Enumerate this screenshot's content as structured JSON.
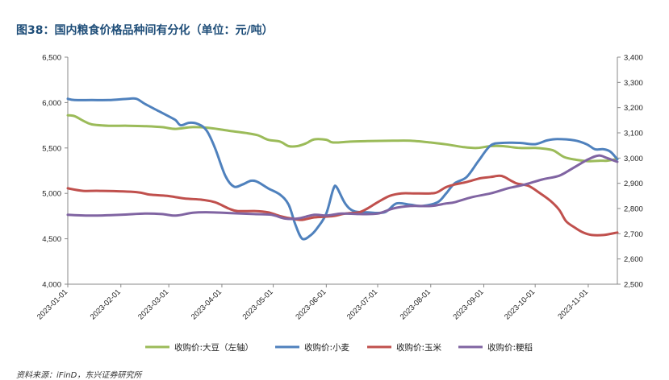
{
  "title": "图38：国内粮食价格品种间有分化（单位：元/吨）",
  "source": "资料来源：iFinD，东兴证券研究所",
  "chart_data": {
    "type": "line",
    "title": "图38：国内粮食价格品种间有分化（单位：元/吨）",
    "xlabel": "",
    "ylabel": "",
    "x_ticks": [
      "2023-01-01",
      "2023-02-01",
      "2023-03-01",
      "2023-04-01",
      "2023-05-01",
      "2023-06-01",
      "2023-07-01",
      "2023-08-01",
      "2023-09-01",
      "2023-10-01",
      "2023-11-01"
    ],
    "x_range": [
      "2023-01-01",
      "2023-11-18"
    ],
    "y_left": {
      "ylim": [
        4000,
        6500
      ],
      "ticks": [
        "4,000",
        "4,500",
        "5,000",
        "5,500",
        "6,000",
        "6,500"
      ]
    },
    "y_right": {
      "ylim": [
        2500,
        3400
      ],
      "ticks": [
        "2,500",
        "2,600",
        "2,700",
        "2,800",
        "2,900",
        "3,000",
        "3,100",
        "3,200",
        "3,300",
        "3,400"
      ]
    },
    "grid": false,
    "legend": "bottom",
    "series": [
      {
        "name": "收购价:大豆（左轴）",
        "axis": "left",
        "color": "#9bbb59",
        "points": [
          [
            "2023-01-01",
            5860
          ],
          [
            "2023-01-05",
            5850
          ],
          [
            "2023-01-10",
            5800
          ],
          [
            "2023-01-15",
            5760
          ],
          [
            "2023-01-25",
            5745
          ],
          [
            "2023-02-05",
            5745
          ],
          [
            "2023-02-15",
            5740
          ],
          [
            "2023-02-25",
            5730
          ],
          [
            "2023-03-05",
            5710
          ],
          [
            "2023-03-15",
            5730
          ],
          [
            "2023-03-25",
            5720
          ],
          [
            "2023-04-05",
            5690
          ],
          [
            "2023-04-15",
            5665
          ],
          [
            "2023-04-22",
            5640
          ],
          [
            "2023-04-28",
            5590
          ],
          [
            "2023-05-05",
            5570
          ],
          [
            "2023-05-10",
            5520
          ],
          [
            "2023-05-15",
            5520
          ],
          [
            "2023-05-20",
            5550
          ],
          [
            "2023-05-25",
            5595
          ],
          [
            "2023-06-01",
            5590
          ],
          [
            "2023-06-05",
            5560
          ],
          [
            "2023-06-15",
            5570
          ],
          [
            "2023-06-25",
            5575
          ],
          [
            "2023-07-10",
            5580
          ],
          [
            "2023-07-20",
            5580
          ],
          [
            "2023-08-01",
            5560
          ],
          [
            "2023-08-10",
            5540
          ],
          [
            "2023-08-20",
            5510
          ],
          [
            "2023-08-28",
            5500
          ],
          [
            "2023-09-05",
            5520
          ],
          [
            "2023-09-12",
            5520
          ],
          [
            "2023-09-22",
            5500
          ],
          [
            "2023-10-01",
            5500
          ],
          [
            "2023-10-07",
            5490
          ],
          [
            "2023-10-12",
            5470
          ],
          [
            "2023-10-18",
            5400
          ],
          [
            "2023-10-25",
            5370
          ],
          [
            "2023-11-01",
            5355
          ],
          [
            "2023-11-08",
            5360
          ],
          [
            "2023-11-12",
            5360
          ],
          [
            "2023-11-18",
            5380
          ]
        ]
      },
      {
        "name": "收购价:小麦",
        "axis": "right",
        "color": "#4f81bd",
        "points": [
          [
            "2023-01-01",
            3235
          ],
          [
            "2023-01-05",
            3230
          ],
          [
            "2023-01-15",
            3230
          ],
          [
            "2023-01-25",
            3230
          ],
          [
            "2023-02-05",
            3235
          ],
          [
            "2023-02-10",
            3235
          ],
          [
            "2023-02-15",
            3215
          ],
          [
            "2023-02-22",
            3190
          ],
          [
            "2023-03-01",
            3165
          ],
          [
            "2023-03-05",
            3150
          ],
          [
            "2023-03-08",
            3130
          ],
          [
            "2023-03-13",
            3140
          ],
          [
            "2023-03-18",
            3135
          ],
          [
            "2023-03-23",
            3110
          ],
          [
            "2023-03-28",
            3040
          ],
          [
            "2023-04-03",
            2930
          ],
          [
            "2023-04-08",
            2887
          ],
          [
            "2023-04-13",
            2895
          ],
          [
            "2023-04-18",
            2910
          ],
          [
            "2023-04-22",
            2905
          ],
          [
            "2023-04-28",
            2880
          ],
          [
            "2023-05-05",
            2855
          ],
          [
            "2023-05-10",
            2815
          ],
          [
            "2023-05-14",
            2735
          ],
          [
            "2023-05-18",
            2680
          ],
          [
            "2023-05-23",
            2695
          ],
          [
            "2023-05-27",
            2725
          ],
          [
            "2023-06-01",
            2780
          ],
          [
            "2023-06-05",
            2875
          ],
          [
            "2023-06-07",
            2885
          ],
          [
            "2023-06-12",
            2820
          ],
          [
            "2023-06-17",
            2790
          ],
          [
            "2023-06-25",
            2785
          ],
          [
            "2023-07-05",
            2785
          ],
          [
            "2023-07-12",
            2820
          ],
          [
            "2023-07-20",
            2815
          ],
          [
            "2023-07-27",
            2810
          ],
          [
            "2023-08-05",
            2825
          ],
          [
            "2023-08-10",
            2860
          ],
          [
            "2023-08-15",
            2900
          ],
          [
            "2023-08-22",
            2925
          ],
          [
            "2023-08-29",
            2990
          ],
          [
            "2023-09-05",
            3050
          ],
          [
            "2023-09-12",
            3060
          ],
          [
            "2023-09-22",
            3060
          ],
          [
            "2023-10-01",
            3055
          ],
          [
            "2023-10-08",
            3070
          ],
          [
            "2023-10-14",
            3075
          ],
          [
            "2023-10-24",
            3070
          ],
          [
            "2023-10-31",
            3055
          ],
          [
            "2023-11-05",
            3035
          ],
          [
            "2023-11-10",
            3035
          ],
          [
            "2023-11-14",
            3025
          ],
          [
            "2023-11-18",
            2995
          ]
        ]
      },
      {
        "name": "收购价:玉米",
        "axis": "right",
        "color": "#c0504d",
        "points": [
          [
            "2023-01-01",
            2880
          ],
          [
            "2023-01-10",
            2870
          ],
          [
            "2023-01-20",
            2870
          ],
          [
            "2023-02-10",
            2865
          ],
          [
            "2023-02-18",
            2855
          ],
          [
            "2023-02-28",
            2850
          ],
          [
            "2023-03-10",
            2840
          ],
          [
            "2023-03-20",
            2835
          ],
          [
            "2023-03-28",
            2825
          ],
          [
            "2023-04-05",
            2800
          ],
          [
            "2023-04-10",
            2790
          ],
          [
            "2023-04-20",
            2790
          ],
          [
            "2023-04-28",
            2785
          ],
          [
            "2023-05-05",
            2770
          ],
          [
            "2023-05-12",
            2760
          ],
          [
            "2023-05-18",
            2755
          ],
          [
            "2023-05-25",
            2765
          ],
          [
            "2023-06-05",
            2770
          ],
          [
            "2023-06-12",
            2780
          ],
          [
            "2023-06-20",
            2785
          ],
          [
            "2023-06-25",
            2800
          ],
          [
            "2023-07-01",
            2825
          ],
          [
            "2023-07-08",
            2850
          ],
          [
            "2023-07-15",
            2860
          ],
          [
            "2023-07-22",
            2860
          ],
          [
            "2023-08-01",
            2860
          ],
          [
            "2023-08-05",
            2865
          ],
          [
            "2023-08-10",
            2885
          ],
          [
            "2023-08-15",
            2895
          ],
          [
            "2023-08-22",
            2905
          ],
          [
            "2023-08-30",
            2920
          ],
          [
            "2023-09-05",
            2925
          ],
          [
            "2023-09-10",
            2930
          ],
          [
            "2023-09-13",
            2925
          ],
          [
            "2023-09-20",
            2900
          ],
          [
            "2023-09-27",
            2890
          ],
          [
            "2023-10-04",
            2860
          ],
          [
            "2023-10-10",
            2830
          ],
          [
            "2023-10-15",
            2795
          ],
          [
            "2023-10-19",
            2750
          ],
          [
            "2023-10-24",
            2725
          ],
          [
            "2023-10-29",
            2705
          ],
          [
            "2023-11-03",
            2695
          ],
          [
            "2023-11-10",
            2695
          ],
          [
            "2023-11-18",
            2705
          ]
        ]
      },
      {
        "name": "收购价:粳稻",
        "axis": "right",
        "color": "#8064a2",
        "points": [
          [
            "2023-01-01",
            2775
          ],
          [
            "2023-01-15",
            2772
          ],
          [
            "2023-02-01",
            2775
          ],
          [
            "2023-02-15",
            2780
          ],
          [
            "2023-02-25",
            2778
          ],
          [
            "2023-03-05",
            2772
          ],
          [
            "2023-03-15",
            2783
          ],
          [
            "2023-03-25",
            2785
          ],
          [
            "2023-04-05",
            2782
          ],
          [
            "2023-04-20",
            2778
          ],
          [
            "2023-04-30",
            2775
          ],
          [
            "2023-05-08",
            2760
          ],
          [
            "2023-05-15",
            2760
          ],
          [
            "2023-05-25",
            2775
          ],
          [
            "2023-06-01",
            2772
          ],
          [
            "2023-06-10",
            2780
          ],
          [
            "2023-06-20",
            2778
          ],
          [
            "2023-07-01",
            2780
          ],
          [
            "2023-07-10",
            2800
          ],
          [
            "2023-07-20",
            2810
          ],
          [
            "2023-08-01",
            2810
          ],
          [
            "2023-08-10",
            2820
          ],
          [
            "2023-08-15",
            2825
          ],
          [
            "2023-08-25",
            2845
          ],
          [
            "2023-09-05",
            2860
          ],
          [
            "2023-09-15",
            2880
          ],
          [
            "2023-09-25",
            2895
          ],
          [
            "2023-10-05",
            2915
          ],
          [
            "2023-10-15",
            2930
          ],
          [
            "2023-10-23",
            2960
          ],
          [
            "2023-11-01",
            2995
          ],
          [
            "2023-11-07",
            3010
          ],
          [
            "2023-11-12",
            3000
          ],
          [
            "2023-11-18",
            2985
          ]
        ]
      }
    ]
  }
}
